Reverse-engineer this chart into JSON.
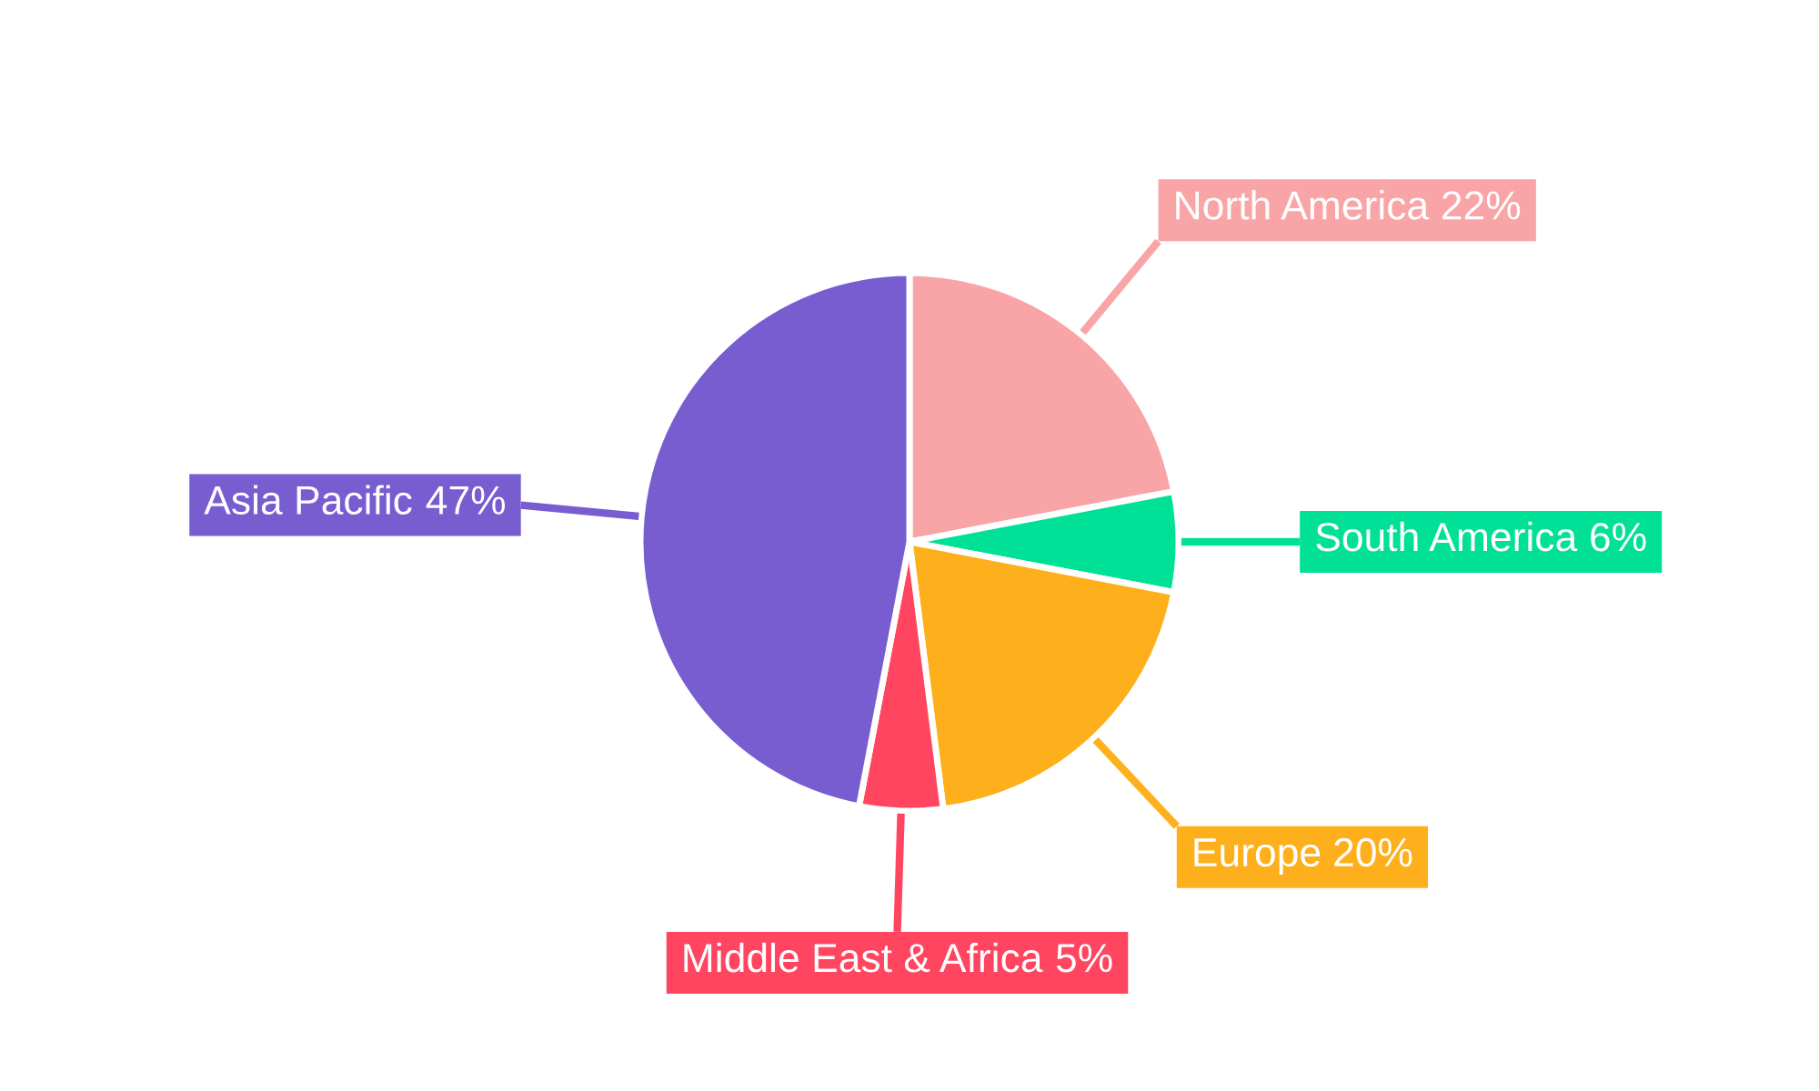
{
  "chart_data": {
    "type": "pie",
    "categories": [
      "North America",
      "South America",
      "Europe",
      "Middle East & Africa",
      "Asia Pacific"
    ],
    "values": [
      22,
      6,
      20,
      5,
      47
    ],
    "colors": [
      "#f9a4a6",
      "#00e096",
      "#fdb01b",
      "#ff4560",
      "#775dd0"
    ],
    "value_labels": [
      "22%",
      "6%",
      "20%",
      "5%",
      "47%"
    ],
    "legend": false
  }
}
